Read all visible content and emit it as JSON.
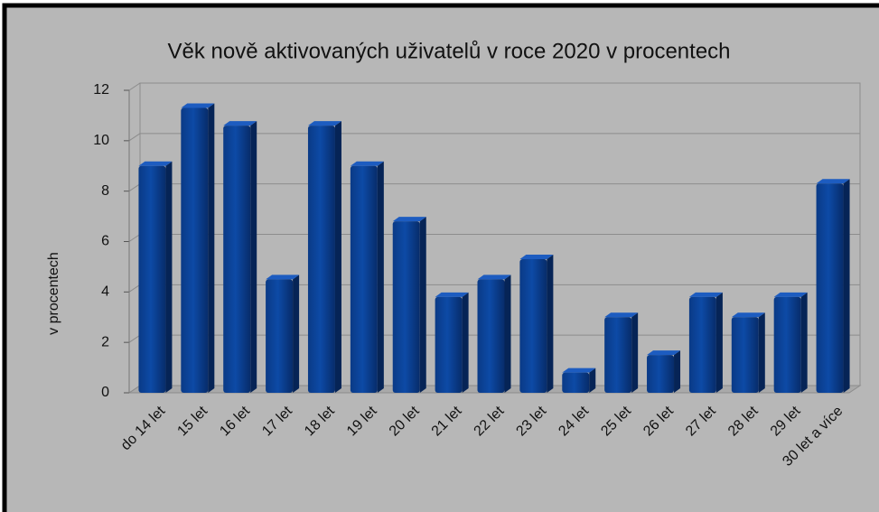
{
  "chart_data": {
    "type": "bar",
    "title": "Věk nově aktivovaných uživatelů v roce 2020 v procentech",
    "y_label": "v procentech",
    "categories": [
      "do 14 let",
      "15 let",
      "16 let",
      "17 let",
      "18 let",
      "19 let",
      "20 let",
      "21 let",
      "22 let",
      "23 let",
      "24 let",
      "25 let",
      "26 let",
      "27 let",
      "28  let",
      "29 let",
      "30 let a více"
    ],
    "values": [
      9,
      11.3,
      10.6,
      4.5,
      10.6,
      9,
      6.8,
      3.8,
      4.5,
      5.3,
      0.8,
      3,
      1.5,
      3.8,
      3,
      3.8,
      8.3
    ],
    "color": "#0d4aa6",
    "ylim": [
      0,
      12
    ],
    "yticks": [
      0,
      2,
      4,
      6,
      8,
      10,
      12
    ],
    "grid": true
  }
}
